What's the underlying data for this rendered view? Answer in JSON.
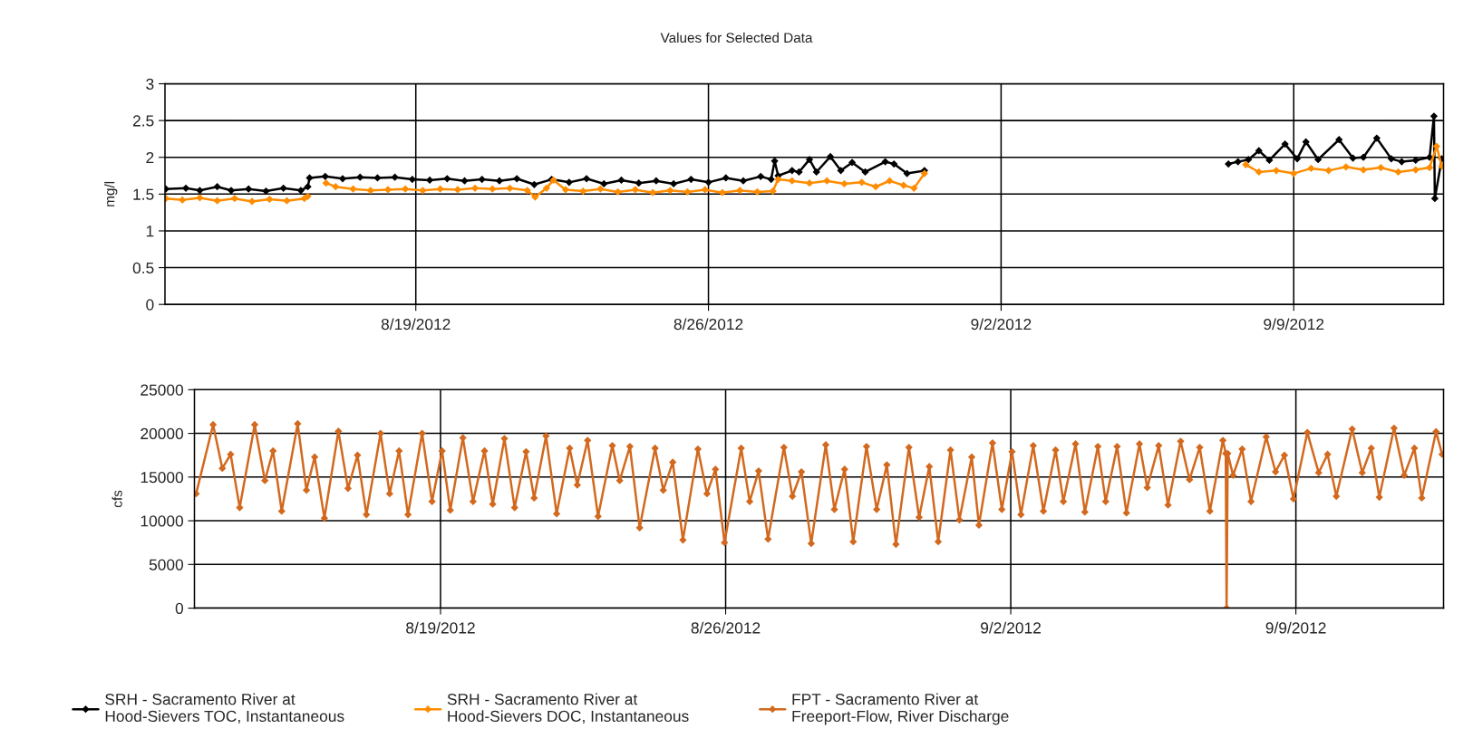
{
  "chart_data": [
    {
      "type": "line",
      "title": "Values for Selected Data",
      "ylabel": "mg/l",
      "xlim": [
        "2012-08-13T00:00",
        "2012-09-12T14:00"
      ],
      "ylim": [
        0,
        3
      ],
      "yticks": [
        0,
        0.5,
        1,
        1.5,
        2,
        2.5,
        3
      ],
      "xticks": [
        {
          "value": "2012-08-19",
          "label": "8/19/2012"
        },
        {
          "value": "2012-08-26",
          "label": "8/26/2012"
        },
        {
          "value": "2012-09-02",
          "label": "9/2/2012"
        },
        {
          "value": "2012-09-09",
          "label": "9/9/2012"
        }
      ],
      "grid": true,
      "marker": "diamond",
      "line_style": "solid",
      "legend": "bottom",
      "series": [
        {
          "name": "SRH - Sacramento River at\nHood-Sievers TOC, Instantaneous",
          "color": "#000000",
          "x": [
            "2012-08-13T00:30",
            "2012-08-13T12:00",
            "2012-08-13T20:00",
            "2012-08-14T06:00",
            "2012-08-14T14:00",
            "2012-08-15T00:00",
            "2012-08-15T10:00",
            "2012-08-15T20:00",
            "2012-08-16T06:00",
            "2012-08-16T10:00",
            "2012-08-16T11:00",
            "2012-08-16T20:00",
            "2012-08-17T06:00",
            "2012-08-17T16:00",
            "2012-08-18T02:00",
            "2012-08-18T12:00",
            "2012-08-18T22:00",
            "2012-08-19T08:00",
            "2012-08-19T18:00",
            "2012-08-20T04:00",
            "2012-08-20T14:00",
            "2012-08-21T00:00",
            "2012-08-21T10:00",
            "2012-08-21T20:00",
            "2012-08-22T06:00",
            "2012-08-22T16:00",
            "2012-08-23T02:00",
            "2012-08-23T12:00",
            "2012-08-23T22:00",
            "2012-08-24T08:00",
            "2012-08-24T18:00",
            "2012-08-25T04:00",
            "2012-08-25T14:00",
            "2012-08-26T00:00",
            "2012-08-26T10:00",
            "2012-08-26T20:00",
            "2012-08-27T06:00",
            "2012-08-27T12:00",
            "2012-08-27T14:00",
            "2012-08-27T16:00",
            "2012-08-28T00:00",
            "2012-08-28T04:00",
            "2012-08-28T10:00",
            "2012-08-28T14:00",
            "2012-08-28T22:00",
            "2012-08-29T04:00",
            "2012-08-29T10:30",
            "2012-08-29T18:00",
            "2012-08-30T05:30",
            "2012-08-30T10:30",
            "2012-08-30T18:00",
            "2012-08-31T04:00",
            "2012-09-03T00:00",
            "2012-09-07T10:30",
            "2012-09-07T16:00",
            "2012-09-07T22:00",
            "2012-09-08T04:00",
            "2012-09-08T10:00",
            "2012-09-08T19:00",
            "2012-09-09T02:00",
            "2012-09-09T07:00",
            "2012-09-09T14:00",
            "2012-09-10T02:00",
            "2012-09-10T10:00",
            "2012-09-10T16:00",
            "2012-09-10T23:40",
            "2012-09-11T08:00",
            "2012-09-11T14:00",
            "2012-09-11T22:00",
            "2012-09-12T06:00",
            "2012-09-12T08:30",
            "2012-09-12T09:00",
            "2012-09-12T13:00"
          ],
          "values": [
            1.57,
            1.58,
            1.55,
            1.6,
            1.55,
            1.57,
            1.54,
            1.58,
            1.55,
            1.6,
            1.72,
            1.74,
            1.71,
            1.73,
            1.72,
            1.73,
            1.7,
            1.69,
            1.71,
            1.68,
            1.7,
            1.68,
            1.71,
            1.63,
            1.7,
            1.66,
            1.71,
            1.64,
            1.69,
            1.65,
            1.68,
            1.64,
            1.7,
            1.66,
            1.72,
            1.68,
            1.74,
            1.7,
            1.95,
            1.75,
            1.82,
            1.8,
            1.97,
            1.8,
            2.01,
            1.82,
            1.93,
            1.8,
            1.94,
            1.91,
            1.78,
            1.82,
            null,
            1.91,
            1.94,
            1.97,
            2.09,
            1.96,
            2.18,
            1.98,
            2.21,
            1.97,
            2.24,
            1.99,
            2.0,
            2.26,
            1.98,
            1.94,
            1.96,
            2.0,
            2.56,
            1.44,
            1.98
          ]
        },
        {
          "name": "SRH - Sacramento River at\nHood-Sievers DOC, Instantaneous",
          "color": "#ff8c00",
          "x": [
            "2012-08-13T00:30",
            "2012-08-13T10:00",
            "2012-08-13T20:00",
            "2012-08-14T06:00",
            "2012-08-14T16:00",
            "2012-08-15T02:00",
            "2012-08-15T12:00",
            "2012-08-15T22:00",
            "2012-08-16T08:00",
            "2012-08-16T10:00",
            "2012-08-16T15:00",
            "2012-08-16T20:30",
            "2012-08-17T02:00",
            "2012-08-17T12:00",
            "2012-08-17T22:00",
            "2012-08-18T08:00",
            "2012-08-18T18:00",
            "2012-08-19T04:00",
            "2012-08-19T14:00",
            "2012-08-20T00:00",
            "2012-08-20T10:00",
            "2012-08-20T20:00",
            "2012-08-21T06:00",
            "2012-08-21T16:00",
            "2012-08-21T20:30",
            "2012-08-22T03:00",
            "2012-08-22T07:00",
            "2012-08-22T14:00",
            "2012-08-23T00:00",
            "2012-08-23T10:00",
            "2012-08-23T20:00",
            "2012-08-24T06:00",
            "2012-08-24T16:00",
            "2012-08-25T02:00",
            "2012-08-25T12:00",
            "2012-08-25T22:00",
            "2012-08-26T08:00",
            "2012-08-26T18:00",
            "2012-08-27T04:00",
            "2012-08-27T13:00",
            "2012-08-27T16:00",
            "2012-08-28T00:00",
            "2012-08-28T10:00",
            "2012-08-28T20:00",
            "2012-08-29T06:00",
            "2012-08-29T16:00",
            "2012-08-30T00:00",
            "2012-08-30T08:00",
            "2012-08-30T16:00",
            "2012-08-30T22:00",
            "2012-08-31T04:00",
            "2012-09-03T00:00",
            "2012-09-07T20:30",
            "2012-09-08T04:00",
            "2012-09-08T14:00",
            "2012-09-09T00:00",
            "2012-09-09T10:00",
            "2012-09-09T20:00",
            "2012-09-10T06:00",
            "2012-09-10T16:00",
            "2012-09-11T02:00",
            "2012-09-11T12:00",
            "2012-09-11T22:00",
            "2012-09-12T06:00",
            "2012-09-12T10:00",
            "2012-09-12T13:00"
          ],
          "values": [
            1.44,
            1.42,
            1.45,
            1.41,
            1.44,
            1.4,
            1.43,
            1.41,
            1.44,
            1.47,
            null,
            1.65,
            1.6,
            1.57,
            1.55,
            1.56,
            1.57,
            1.55,
            1.57,
            1.56,
            1.58,
            1.57,
            1.58,
            1.55,
            1.46,
            1.58,
            1.69,
            1.56,
            1.54,
            1.57,
            1.53,
            1.56,
            1.52,
            1.55,
            1.53,
            1.56,
            1.52,
            1.55,
            1.53,
            1.54,
            1.7,
            1.68,
            1.65,
            1.68,
            1.64,
            1.66,
            1.6,
            1.68,
            1.62,
            1.58,
            1.78,
            null,
            1.9,
            1.8,
            1.82,
            1.78,
            1.85,
            1.82,
            1.87,
            1.83,
            1.86,
            1.8,
            1.83,
            1.86,
            2.15,
            1.88
          ]
        }
      ]
    },
    {
      "type": "line",
      "ylabel": "cfs",
      "xlim": [
        "2012-08-12T23:00",
        "2012-09-12T15:00"
      ],
      "ylim": [
        0,
        25000
      ],
      "yticks": [
        0,
        5000,
        10000,
        15000,
        20000,
        25000
      ],
      "xticks": [
        {
          "value": "2012-08-19",
          "label": "8/19/2012"
        },
        {
          "value": "2012-08-26",
          "label": "8/26/2012"
        },
        {
          "value": "2012-09-02",
          "label": "9/2/2012"
        },
        {
          "value": "2012-09-09",
          "label": "9/9/2012"
        }
      ],
      "grid": true,
      "marker": "diamond",
      "line_style": "solid",
      "legend": "bottom",
      "series": [
        {
          "name": "FPT - Sacramento River at\nFreeport-Flow, River Discharge",
          "color": "#d2691e",
          "x": [
            "2012-08-13T00:00",
            "2012-08-13T10:00",
            "2012-08-13T15:25",
            "2012-08-13T20:20",
            "2012-08-14T01:40",
            "2012-08-14T10:30",
            "2012-08-14T16:30",
            "2012-08-14T21:20",
            "2012-08-15T02:25",
            "2012-08-15T11:50",
            "2012-08-15T17:00",
            "2012-08-15T21:50",
            "2012-08-16T03:35",
            "2012-08-16T11:50",
            "2012-08-16T17:30",
            "2012-08-16T23:05",
            "2012-08-17T04:20",
            "2012-08-17T12:40",
            "2012-08-17T18:00",
            "2012-08-17T23:35",
            "2012-08-18T04:50",
            "2012-08-18T13:10",
            "2012-08-18T19:00",
            "2012-08-19T00:55",
            "2012-08-19T05:45",
            "2012-08-19T13:10",
            "2012-08-19T19:10",
            "2012-08-20T01:55",
            "2012-08-20T06:45",
            "2012-08-20T13:40",
            "2012-08-20T19:40",
            "2012-08-21T02:25",
            "2012-08-21T07:10",
            "2012-08-21T14:10",
            "2012-08-21T20:25",
            "2012-08-22T04:05",
            "2012-08-22T08:35",
            "2012-08-22T14:40",
            "2012-08-22T20:50",
            "2012-08-23T05:15",
            "2012-08-23T09:35",
            "2012-08-23T15:35",
            "2012-08-23T21:20",
            "2012-08-24T06:25",
            "2012-08-24T11:15",
            "2012-08-24T16:50",
            "2012-08-24T22:50",
            "2012-08-25T07:40",
            "2012-08-25T13:00",
            "2012-08-25T18:00",
            "2012-08-25T23:20",
            "2012-08-26T09:10",
            "2012-08-26T14:10",
            "2012-08-26T19:25",
            "2012-08-27T01:00",
            "2012-08-27T10:20",
            "2012-08-27T15:20",
            "2012-08-27T20:40",
            "2012-08-28T02:25",
            "2012-08-28T11:00",
            "2012-08-28T16:05",
            "2012-08-28T22:05",
            "2012-08-29T03:10",
            "2012-08-29T11:00",
            "2012-08-29T17:00",
            "2012-08-29T23:00",
            "2012-08-30T04:20",
            "2012-08-30T12:00",
            "2012-08-30T18:00",
            "2012-08-31T00:00",
            "2012-08-31T05:15",
            "2012-08-31T12:30",
            "2012-08-31T17:45",
            "2012-09-01T01:00",
            "2012-09-01T05:15",
            "2012-09-01T13:15",
            "2012-09-01T18:45",
            "2012-09-02T00:45",
            "2012-09-02T06:00",
            "2012-09-02T13:15",
            "2012-09-02T19:15",
            "2012-09-03T02:25",
            "2012-09-03T07:00",
            "2012-09-03T14:10",
            "2012-09-03T19:40",
            "2012-09-04T03:20",
            "2012-09-04T07:55",
            "2012-09-04T14:40",
            "2012-09-04T20:10",
            "2012-09-05T03:50",
            "2012-09-05T08:25",
            "2012-09-05T15:10",
            "2012-09-05T20:40",
            "2012-09-06T04:05",
            "2012-09-06T09:20",
            "2012-09-06T15:20",
            "2012-09-06T21:20",
            "2012-09-07T05:00",
            "2012-09-07T06:40",
            "2012-09-07T07:10",
            "2012-09-07T07:50",
            "2012-09-07T11:00",
            "2012-09-07T16:20",
            "2012-09-07T21:35",
            "2012-09-08T06:30",
            "2012-09-08T12:00",
            "2012-09-08T17:15",
            "2012-09-08T22:35",
            "2012-09-09T06:45",
            "2012-09-09T13:25",
            "2012-09-09T18:40",
            "2012-09-09T23:50",
            "2012-09-10T09:10",
            "2012-09-10T15:05",
            "2012-09-10T20:25",
            "2012-09-11T01:10",
            "2012-09-11T09:50",
            "2012-09-11T15:50",
            "2012-09-11T21:50",
            "2012-09-12T02:10",
            "2012-09-12T10:35",
            "2012-09-12T14:10"
          ],
          "values": [
            13100,
            21000,
            16000,
            17600,
            11500,
            21000,
            14600,
            18000,
            11100,
            21100,
            13500,
            17300,
            10300,
            20250,
            13700,
            17500,
            10700,
            20000,
            13100,
            18000,
            10700,
            20000,
            12200,
            18000,
            11200,
            19500,
            12200,
            18000,
            11900,
            19400,
            11500,
            17900,
            12600,
            19700,
            10800,
            18300,
            14100,
            19200,
            10500,
            18600,
            14600,
            18500,
            9200,
            18300,
            13500,
            16700,
            7800,
            18200,
            13100,
            15900,
            7500,
            18300,
            12200,
            15700,
            7900,
            18400,
            12800,
            15600,
            7400,
            18700,
            11300,
            15900,
            7600,
            18500,
            11300,
            16400,
            7300,
            18400,
            10400,
            16200,
            7600,
            18100,
            10100,
            17300,
            9500,
            18900,
            11300,
            17900,
            10700,
            18600,
            11100,
            18100,
            12200,
            18800,
            11000,
            18500,
            12200,
            18500,
            10900,
            18800,
            13800,
            18600,
            11800,
            19100,
            14700,
            18400,
            11100,
            19200,
            17700,
            0,
            17700,
            15200,
            18200,
            12200,
            19600,
            15600,
            17500,
            12500,
            20100,
            15500,
            17600,
            12800,
            20500,
            15500,
            18300,
            12700,
            20600,
            15200,
            18300,
            12600,
            20200,
            17600
          ]
        }
      ]
    }
  ]
}
